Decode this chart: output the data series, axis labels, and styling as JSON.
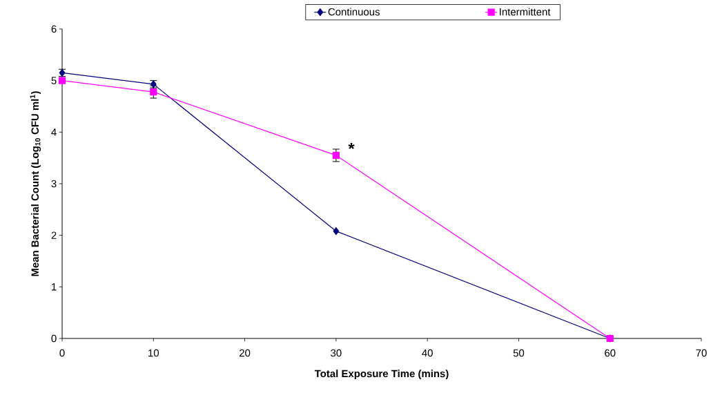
{
  "chart_data": {
    "type": "line",
    "xlabel": "Total Exposure Time (mins)",
    "ylabel": "Mean Bacterial Count (Log$_{10}$ CFU ml$^{1}$)",
    "x": [
      0,
      10,
      30,
      60
    ],
    "series": [
      {
        "name": "Continuous",
        "color": "#000080",
        "marker": "diamond",
        "values": [
          5.15,
          4.93,
          2.08,
          0
        ],
        "errors": [
          0.07,
          0.07,
          null,
          null
        ]
      },
      {
        "name": "Intermittent",
        "color": "#ff00ff",
        "marker": "square",
        "values": [
          5.0,
          4.78,
          3.55,
          0
        ],
        "errors": [
          0.05,
          0.12,
          0.12,
          null
        ]
      }
    ],
    "annotations": [
      {
        "text": "*",
        "x": 30,
        "y": 3.55
      }
    ],
    "xlim": [
      0,
      70
    ],
    "ylim": [
      0,
      6
    ],
    "xticks": [
      0,
      10,
      20,
      30,
      40,
      50,
      60,
      70
    ],
    "yticks": [
      0,
      1,
      2,
      3,
      4,
      5,
      6
    ],
    "grid": false,
    "legend": "top",
    "line_style": "solid"
  }
}
